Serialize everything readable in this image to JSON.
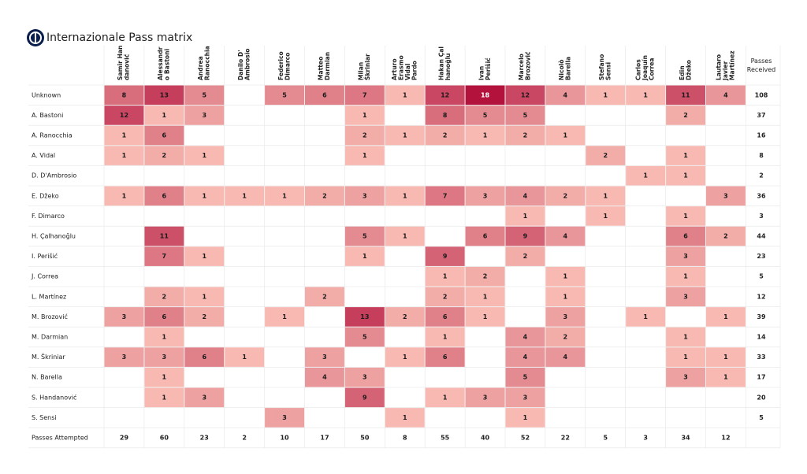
{
  "title": "Internazionale Pass matrix",
  "logo": "inter-milan-crest-icon",
  "colors": {
    "low": "#fdc9bd",
    "high": "#b3123c",
    "text": "#222222",
    "grid": "#e6e6e6",
    "background": "#ffffff"
  },
  "chart_data": {
    "type": "heatmap",
    "title": "Internazionale Pass matrix",
    "column_header_lines": [
      [
        "Samir Han",
        "danović"
      ],
      [
        "Alessandr",
        "o Bastoni"
      ],
      [
        "Andrea",
        "Ranocchia"
      ],
      [
        "Danilo D'",
        "Ambrosio"
      ],
      [
        "Federico",
        "Dimarco"
      ],
      [
        "Matteo",
        "Darmian"
      ],
      [
        "Milan",
        "Škriniar"
      ],
      [
        "Arturo",
        "Erasmo",
        "Vidal",
        "Pardo"
      ],
      [
        "Hakan Çal",
        "hanoğlu"
      ],
      [
        "Ivan",
        "Perišić"
      ],
      [
        "Marcelo",
        "Brozović"
      ],
      [
        "Nicolò",
        "Barella"
      ],
      [
        "Stefano",
        "Sensi"
      ],
      [
        "Carlos",
        "Joaquín",
        "Correa"
      ],
      [
        "Edin",
        "Džeko"
      ],
      [
        "Lautaro",
        "Javier",
        "Martínez"
      ]
    ],
    "passers": [
      "Samir Handanović",
      "Alessandro Bastoni",
      "Andrea Ranocchia",
      "Danilo D'Ambrosio",
      "Federico Dimarco",
      "Matteo Darmian",
      "Milan Škriniar",
      "Arturo Erasmo Vidal Pardo",
      "Hakan Çalhanoğlu",
      "Ivan Perišić",
      "Marcelo Brozović",
      "Nicolò Barella",
      "Stefano Sensi",
      "Carlos Joaquín Correa",
      "Edin Džeko",
      "Lautaro Javier Martínez"
    ],
    "receivers": [
      "Unknown",
      "A. Bastoni",
      "A. Ranocchia",
      "A. Vidal",
      "D. D'Ambrosio",
      "E. Džeko",
      "F. Dimarco",
      "H. Çalhanoğlu",
      "I. Perišić",
      "J. Correa",
      "L. Martínez",
      "M. Brozović",
      "M. Darmian",
      "M. Škriniar",
      "N. Barella",
      "S. Handanović",
      "S. Sensi"
    ],
    "values": [
      [
        8,
        13,
        5,
        null,
        5,
        6,
        7,
        1,
        12,
        18,
        12,
        4,
        1,
        1,
        11,
        4
      ],
      [
        12,
        1,
        3,
        null,
        null,
        null,
        1,
        null,
        8,
        5,
        5,
        null,
        null,
        null,
        2,
        null
      ],
      [
        1,
        6,
        null,
        null,
        null,
        null,
        2,
        1,
        2,
        1,
        2,
        1,
        null,
        null,
        null,
        null
      ],
      [
        1,
        2,
        1,
        null,
        null,
        null,
        1,
        null,
        null,
        null,
        null,
        null,
        2,
        null,
        1,
        null
      ],
      [
        null,
        null,
        null,
        null,
        null,
        null,
        null,
        null,
        null,
        null,
        null,
        null,
        null,
        1,
        1,
        null
      ],
      [
        1,
        6,
        1,
        1,
        1,
        2,
        3,
        1,
        7,
        3,
        4,
        2,
        1,
        null,
        null,
        3
      ],
      [
        null,
        null,
        null,
        null,
        null,
        null,
        null,
        null,
        null,
        null,
        1,
        null,
        1,
        null,
        1,
        null
      ],
      [
        null,
        11,
        null,
        null,
        null,
        null,
        5,
        1,
        null,
        6,
        9,
        4,
        null,
        null,
        6,
        2
      ],
      [
        null,
        7,
        1,
        null,
        null,
        null,
        1,
        null,
        9,
        null,
        2,
        null,
        null,
        null,
        3,
        null
      ],
      [
        null,
        null,
        null,
        null,
        null,
        null,
        null,
        null,
        1,
        2,
        null,
        1,
        null,
        null,
        1,
        null
      ],
      [
        null,
        2,
        1,
        null,
        null,
        2,
        null,
        null,
        2,
        1,
        null,
        1,
        null,
        null,
        3,
        null
      ],
      [
        3,
        6,
        2,
        null,
        1,
        null,
        13,
        2,
        6,
        1,
        null,
        3,
        null,
        1,
        null,
        1
      ],
      [
        null,
        1,
        null,
        null,
        null,
        null,
        5,
        null,
        1,
        null,
        4,
        2,
        null,
        null,
        1,
        null
      ],
      [
        3,
        3,
        6,
        1,
        null,
        3,
        null,
        1,
        6,
        null,
        4,
        4,
        null,
        null,
        1,
        1
      ],
      [
        null,
        1,
        null,
        null,
        null,
        4,
        3,
        null,
        null,
        null,
        5,
        null,
        null,
        null,
        3,
        1
      ],
      [
        null,
        1,
        3,
        null,
        null,
        null,
        9,
        null,
        1,
        3,
        3,
        null,
        null,
        null,
        null,
        null
      ],
      [
        null,
        null,
        null,
        null,
        3,
        null,
        null,
        1,
        null,
        null,
        1,
        null,
        null,
        null,
        null,
        null
      ]
    ],
    "passes_received_label": [
      "Passes",
      "Received"
    ],
    "passes_received": [
      108,
      37,
      16,
      8,
      2,
      36,
      3,
      44,
      23,
      5,
      12,
      39,
      14,
      33,
      17,
      20,
      5
    ],
    "passes_attempted_label": "Passes Attempted",
    "passes_attempted": [
      29,
      60,
      23,
      2,
      10,
      17,
      50,
      8,
      55,
      40,
      52,
      22,
      5,
      3,
      34,
      12
    ]
  }
}
